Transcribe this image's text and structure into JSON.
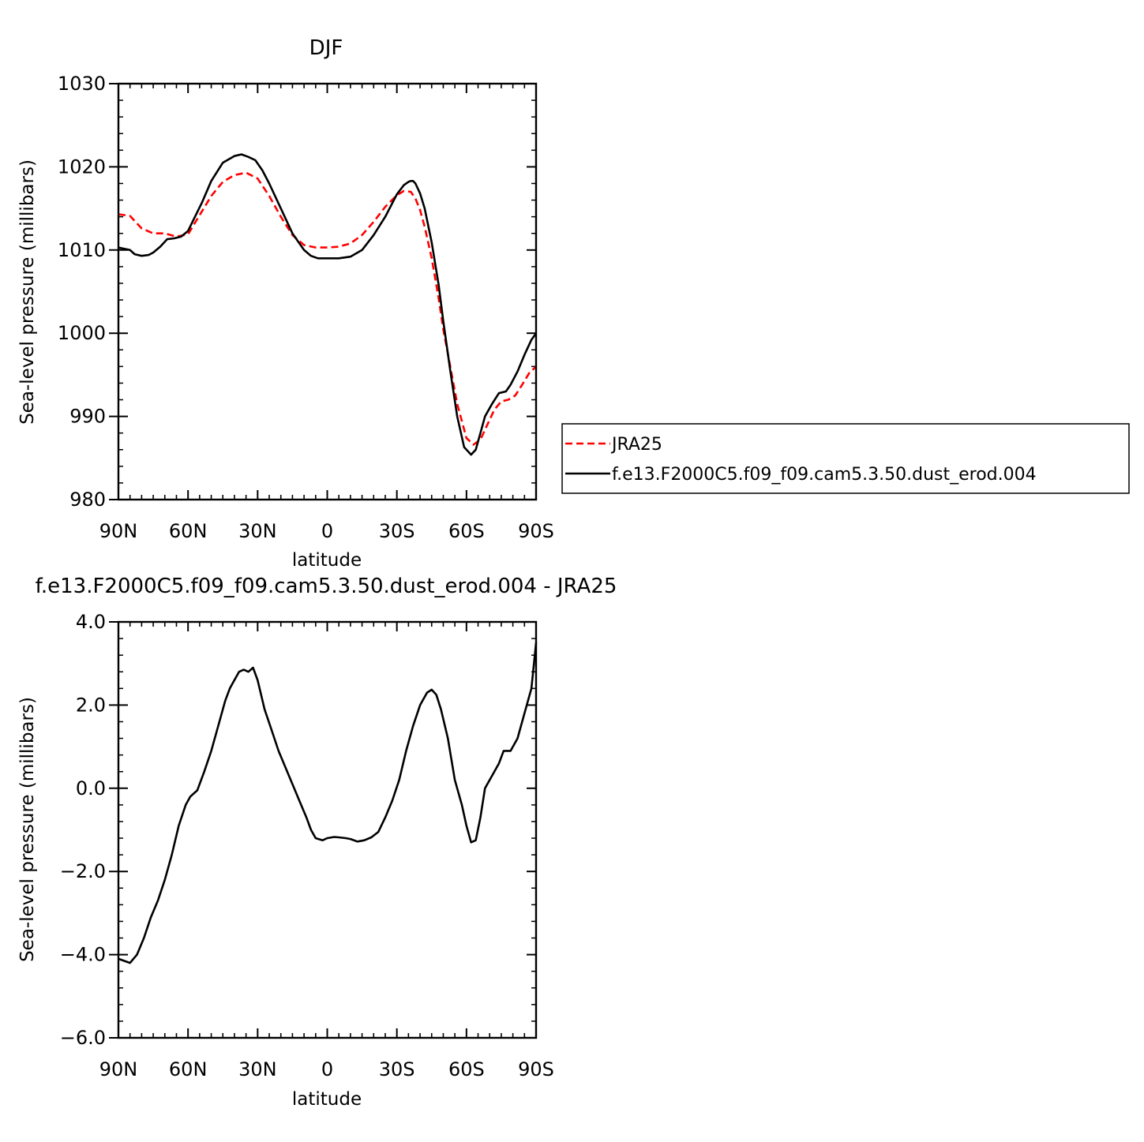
{
  "chart_data": [
    {
      "type": "line",
      "title": "DJF",
      "xlabel": "latitude",
      "ylabel": "Sea-level pressure (millibars)",
      "ylim": [
        980,
        1030
      ],
      "xlim": [
        -90,
        90
      ],
      "xticks": [
        -90,
        -60,
        -30,
        0,
        30,
        60,
        90
      ],
      "xtick_labels": [
        "90N",
        "60N",
        "30N",
        "0",
        "30S",
        "60S",
        "90S"
      ],
      "yticks": [
        980,
        990,
        1000,
        1010,
        1020,
        1030
      ],
      "ytick_labels": [
        "980",
        "990",
        "1000",
        "1010",
        "1020",
        "1030"
      ],
      "legend_position": "right, outside plot",
      "series": [
        {
          "name": "JRA25",
          "color": "#ff0000",
          "style": "dashed",
          "x": [
            -90,
            -85,
            -80,
            -75,
            -70,
            -65,
            -60,
            -55,
            -50,
            -45,
            -40,
            -35,
            -30,
            -25,
            -20,
            -15,
            -10,
            -5,
            0,
            5,
            10,
            15,
            20,
            25,
            30,
            33,
            36,
            38,
            40,
            42,
            45,
            48,
            50,
            53,
            56,
            60,
            63,
            66,
            69,
            72,
            75,
            78,
            81,
            84,
            87,
            90
          ],
          "y": [
            1014.3,
            1014.1,
            1012.6,
            1012.0,
            1012.0,
            1011.6,
            1011.9,
            1014.2,
            1016.5,
            1018.2,
            1019.0,
            1019.3,
            1018.6,
            1016.5,
            1014.0,
            1011.8,
            1010.6,
            1010.3,
            1010.3,
            1010.4,
            1010.8,
            1011.8,
            1013.4,
            1015.2,
            1016.6,
            1017.1,
            1017.0,
            1016.2,
            1014.8,
            1012.8,
            1009.0,
            1004.2,
            1000.5,
            996.0,
            991.5,
            987.4,
            986.6,
            987.2,
            989.0,
            990.8,
            991.8,
            992.0,
            992.5,
            993.8,
            995.2,
            996.0
          ]
        },
        {
          "name": "f.e13.F2000C5.f09_f09.cam5.3.50.dust_erod.004",
          "color": "#000000",
          "style": "solid",
          "x": [
            -90,
            -85,
            -83,
            -80,
            -77,
            -75,
            -72,
            -69,
            -66,
            -63,
            -60,
            -57,
            -54,
            -50,
            -45,
            -40,
            -37,
            -34,
            -31,
            -28,
            -25,
            -20,
            -15,
            -10,
            -7,
            -4,
            -1,
            0,
            5,
            10,
            15,
            20,
            25,
            30,
            33,
            35,
            36,
            37,
            38,
            40,
            42,
            45,
            48,
            50,
            53,
            56,
            59,
            62,
            64,
            66,
            68,
            71,
            74,
            77,
            79,
            82,
            85,
            88,
            90
          ],
          "y": [
            1010.3,
            1010.0,
            1009.5,
            1009.3,
            1009.4,
            1009.7,
            1010.4,
            1011.3,
            1011.4,
            1011.6,
            1012.3,
            1014.0,
            1015.7,
            1018.3,
            1020.5,
            1021.3,
            1021.5,
            1021.2,
            1020.8,
            1019.6,
            1018.0,
            1015.0,
            1012.0,
            1010.0,
            1009.3,
            1009.0,
            1009.0,
            1009.0,
            1009.0,
            1009.2,
            1010.0,
            1011.8,
            1014.0,
            1016.7,
            1017.8,
            1018.2,
            1018.3,
            1018.3,
            1018.0,
            1016.8,
            1015.0,
            1010.9,
            1005.8,
            1001.5,
            995.5,
            990.0,
            986.3,
            985.4,
            986.0,
            988.0,
            990.0,
            991.5,
            992.8,
            993.0,
            993.8,
            995.4,
            997.4,
            999.2,
            1000.0
          ]
        }
      ]
    },
    {
      "type": "line",
      "title": "f.e13.F2000C5.f09_f09.cam5.3.50.dust_erod.004 - JRA25",
      "xlabel": "latitude",
      "ylabel": "Sea-level pressure (millibars)",
      "ylim": [
        -6.0,
        4.0
      ],
      "xlim": [
        -90,
        90
      ],
      "xticks": [
        -90,
        -60,
        -30,
        0,
        30,
        60,
        90
      ],
      "xtick_labels": [
        "90N",
        "60N",
        "30N",
        "0",
        "30S",
        "60S",
        "90S"
      ],
      "yticks": [
        -6.0,
        -4.0,
        -2.0,
        0.0,
        2.0,
        4.0
      ],
      "ytick_labels": [
        "−6.0",
        "−4.0",
        "−2.0",
        "0.0",
        "2.0",
        "4.0"
      ],
      "series": [
        {
          "color": "#000000",
          "style": "solid",
          "x": [
            -90,
            -85,
            -82,
            -79,
            -76,
            -73,
            -70,
            -67,
            -64,
            -61,
            -59,
            -56,
            -53,
            -50,
            -47,
            -44,
            -42,
            -40,
            -38,
            -36,
            -34,
            -32,
            -30,
            -27,
            -24,
            -21,
            -18,
            -15,
            -12,
            -9,
            -7,
            -5,
            -2,
            0,
            3,
            5,
            8,
            10,
            13,
            16,
            19,
            22,
            25,
            28,
            31,
            34,
            37,
            40,
            43,
            45,
            47,
            49,
            52,
            55,
            58,
            60,
            62,
            64,
            66,
            68,
            71,
            74,
            76,
            79,
            82,
            85,
            88,
            90
          ],
          "y": [
            -4.1,
            -4.2,
            -4.0,
            -3.6,
            -3.1,
            -2.7,
            -2.2,
            -1.6,
            -0.9,
            -0.4,
            -0.2,
            -0.05,
            0.4,
            0.9,
            1.5,
            2.1,
            2.4,
            2.6,
            2.8,
            2.85,
            2.8,
            2.9,
            2.6,
            1.9,
            1.4,
            0.9,
            0.5,
            0.1,
            -0.3,
            -0.7,
            -1.0,
            -1.2,
            -1.25,
            -1.2,
            -1.17,
            -1.18,
            -1.2,
            -1.22,
            -1.28,
            -1.25,
            -1.18,
            -1.05,
            -0.7,
            -0.3,
            0.2,
            0.9,
            1.5,
            2.0,
            2.3,
            2.37,
            2.25,
            1.9,
            1.2,
            0.2,
            -0.4,
            -0.9,
            -1.3,
            -1.25,
            -0.7,
            0.0,
            0.3,
            0.6,
            0.9,
            0.9,
            1.2,
            1.8,
            2.4,
            3.5
          ]
        }
      ]
    }
  ]
}
